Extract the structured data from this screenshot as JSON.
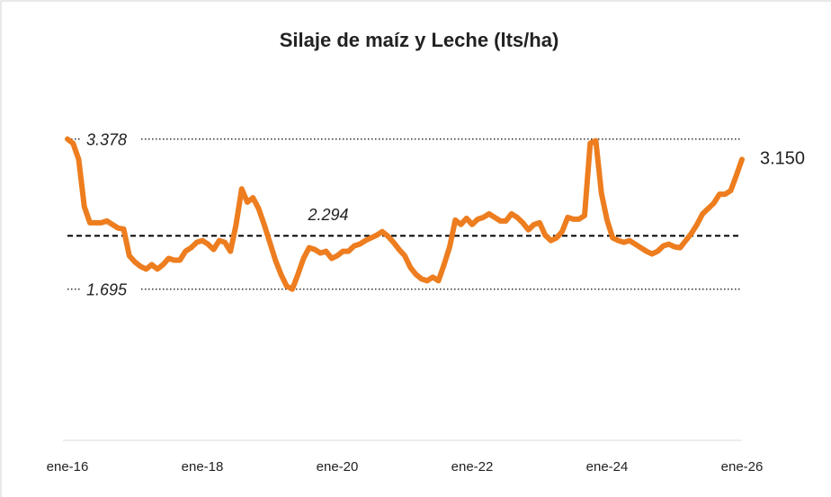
{
  "chart_data": {
    "type": "line",
    "title": "Silaje de maíz y Leche (lts/ha)",
    "x": [
      "2016-01",
      "2016-02",
      "2016-03",
      "2016-04",
      "2016-05",
      "2016-06",
      "2016-07",
      "2016-08",
      "2016-09",
      "2016-10",
      "2016-11",
      "2016-12",
      "2017-01",
      "2017-02",
      "2017-03",
      "2017-04",
      "2017-05",
      "2017-06",
      "2017-07",
      "2017-08",
      "2017-09",
      "2017-10",
      "2017-11",
      "2017-12",
      "2018-01",
      "2018-02",
      "2018-03",
      "2018-04",
      "2018-05",
      "2018-06",
      "2018-07",
      "2018-08",
      "2018-09",
      "2018-10",
      "2018-11",
      "2018-12",
      "2019-01",
      "2019-02",
      "2019-03",
      "2019-04",
      "2019-05",
      "2019-06",
      "2019-07",
      "2019-08",
      "2019-09",
      "2019-10",
      "2019-11",
      "2019-12",
      "2020-01",
      "2020-02",
      "2020-03",
      "2020-04",
      "2020-05",
      "2020-06",
      "2020-07",
      "2020-08",
      "2020-09",
      "2020-10",
      "2020-11",
      "2020-12",
      "2021-01",
      "2021-02",
      "2021-03",
      "2021-04",
      "2021-05",
      "2021-06",
      "2021-07",
      "2021-08",
      "2021-09",
      "2021-10",
      "2021-11",
      "2021-12",
      "2022-01",
      "2022-02",
      "2022-03",
      "2022-04",
      "2022-05",
      "2022-06",
      "2022-07",
      "2022-08",
      "2022-09",
      "2022-10",
      "2022-11",
      "2022-12",
      "2023-01",
      "2023-02",
      "2023-03",
      "2023-04",
      "2023-05",
      "2023-06",
      "2023-07",
      "2023-08",
      "2023-09",
      "2023-10",
      "2023-11",
      "2023-12",
      "2024-01",
      "2024-02",
      "2024-03",
      "2024-04",
      "2024-05",
      "2024-06",
      "2024-07",
      "2024-08",
      "2024-09",
      "2024-10",
      "2024-11",
      "2024-12",
      "2025-01",
      "2025-02",
      "2025-03",
      "2025-04",
      "2025-05",
      "2025-06",
      "2025-07",
      "2025-08",
      "2025-09",
      "2025-10",
      "2025-11",
      "2025-12",
      "2026-01"
    ],
    "series": [
      {
        "color": "#ed7d1f",
        "values": [
          3.378,
          3.33,
          3.15,
          2.62,
          2.44,
          2.44,
          2.44,
          2.46,
          2.42,
          2.38,
          2.37,
          2.07,
          2.0,
          1.95,
          1.92,
          1.97,
          1.92,
          1.97,
          2.04,
          2.02,
          2.02,
          2.12,
          2.16,
          2.22,
          2.24,
          2.2,
          2.14,
          2.24,
          2.22,
          2.12,
          2.42,
          2.82,
          2.67,
          2.72,
          2.6,
          2.42,
          2.22,
          2.02,
          1.86,
          1.73,
          1.695,
          1.86,
          2.04,
          2.16,
          2.14,
          2.1,
          2.12,
          2.04,
          2.07,
          2.12,
          2.12,
          2.18,
          2.2,
          2.24,
          2.27,
          2.3,
          2.34,
          2.29,
          2.22,
          2.14,
          2.07,
          1.94,
          1.86,
          1.81,
          1.79,
          1.83,
          1.79,
          1.97,
          2.17,
          2.47,
          2.42,
          2.49,
          2.42,
          2.48,
          2.5,
          2.54,
          2.5,
          2.46,
          2.46,
          2.54,
          2.5,
          2.44,
          2.36,
          2.42,
          2.44,
          2.3,
          2.24,
          2.27,
          2.34,
          2.5,
          2.48,
          2.48,
          2.52,
          3.33,
          3.36,
          2.77,
          2.47,
          2.27,
          2.24,
          2.22,
          2.24,
          2.2,
          2.16,
          2.12,
          2.09,
          2.12,
          2.18,
          2.2,
          2.17,
          2.16,
          2.24,
          2.32,
          2.42,
          2.54,
          2.6,
          2.66,
          2.76,
          2.76,
          2.8,
          2.97,
          3.15
        ],
        "value_labels": [
          null,
          null,
          null,
          null,
          null,
          null,
          null,
          null,
          null,
          null,
          null,
          null,
          null,
          null,
          null,
          null,
          null,
          null,
          null,
          null,
          null,
          null,
          null,
          null,
          null,
          null,
          null,
          null,
          null,
          null,
          null,
          null,
          null,
          null,
          null,
          null,
          null,
          null,
          null,
          null,
          null,
          null,
          null,
          null,
          null,
          null,
          null,
          null,
          null,
          null,
          null,
          null,
          null,
          null,
          null,
          null,
          null,
          null,
          null,
          null,
          null,
          null,
          null,
          null,
          null,
          null,
          null,
          null,
          null,
          null,
          null,
          null,
          null,
          null,
          null,
          null,
          null,
          null,
          null,
          null,
          null,
          null,
          null,
          null,
          null,
          null,
          null,
          null,
          null,
          null,
          null,
          null,
          null,
          null,
          null,
          null,
          null,
          null,
          null,
          null,
          null,
          null,
          null,
          null,
          null,
          null,
          null,
          null,
          null,
          null,
          null,
          null,
          null,
          null,
          null,
          null,
          null,
          null,
          null,
          null,
          "3.150"
        ]
      }
    ],
    "xlim": [
      "2016-01",
      "2026-01"
    ],
    "xticks": [
      {
        "value": "2016-01",
        "label": "ene-16"
      },
      {
        "value": "2018-01",
        "label": "ene-18"
      },
      {
        "value": "2020-01",
        "label": "ene-20"
      },
      {
        "value": "2022-01",
        "label": "ene-22"
      },
      {
        "value": "2024-01",
        "label": "ene-24"
      },
      {
        "value": "2026-01",
        "label": "ene-26"
      }
    ],
    "ylim": [
      0,
      4
    ],
    "reference_lines": [
      {
        "value": 3.378,
        "style": "dotted"
      },
      {
        "value": 2.294,
        "style": "dashed"
      },
      {
        "value": 1.695,
        "style": "dotted"
      }
    ]
  }
}
